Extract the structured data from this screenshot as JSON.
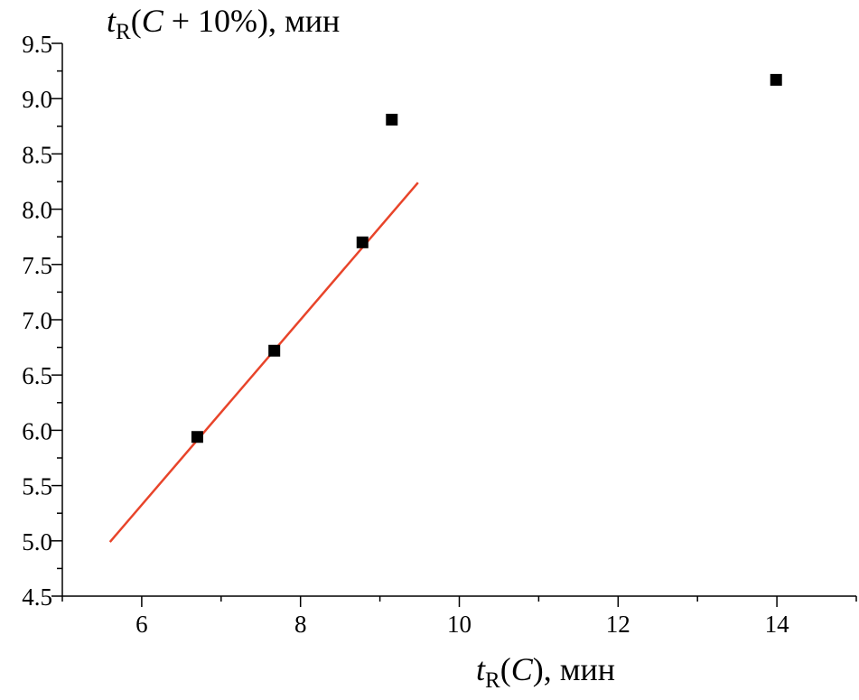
{
  "chart_data": {
    "type": "scatter",
    "title": "",
    "xlabel": {
      "t": "t",
      "sub": "R",
      "open": "(",
      "arg": "C",
      "close": ")",
      "unit": ", мин"
    },
    "ylabel": {
      "t": "t",
      "sub": "R",
      "open": "(",
      "arg": "C",
      "rest": " + 10%)",
      "unit": ", мин"
    },
    "xlim": [
      5,
      15
    ],
    "ylim": [
      4.5,
      9.5
    ],
    "x_ticks": [
      6,
      8,
      10,
      12,
      14
    ],
    "x_tick_labels": [
      "6",
      "8",
      "10",
      "12",
      "14"
    ],
    "x_minor_step": 1,
    "y_ticks": [
      4.5,
      5.0,
      5.5,
      6.0,
      6.5,
      7.0,
      7.5,
      8.0,
      8.5,
      9.0,
      9.5
    ],
    "y_tick_labels": [
      "4.5",
      "5.0",
      "5.5",
      "6.0",
      "6.5",
      "7.0",
      "7.5",
      "8.0",
      "8.5",
      "9.0",
      "9.5"
    ],
    "y_minor_step": 0.25,
    "grid": false,
    "legend": "none",
    "series": [
      {
        "kind": "scatter",
        "marker": "square",
        "color": "#000000",
        "points": [
          {
            "x": 6.7,
            "y": 5.94
          },
          {
            "x": 7.67,
            "y": 6.72
          },
          {
            "x": 8.78,
            "y": 7.7
          },
          {
            "x": 9.15,
            "y": 8.81
          },
          {
            "x": 13.99,
            "y": 9.17
          }
        ]
      },
      {
        "kind": "line",
        "color": "#e8442a",
        "points": [
          {
            "x": 5.6,
            "y": 4.99
          },
          {
            "x": 9.48,
            "y": 8.24
          }
        ]
      }
    ]
  }
}
